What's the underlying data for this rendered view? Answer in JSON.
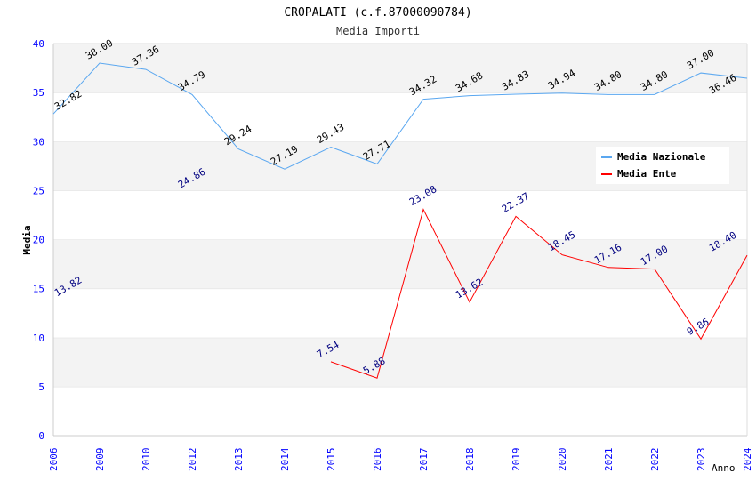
{
  "chart_data": {
    "type": "line",
    "title": "CROPALATI (c.f.87000090784)",
    "subtitle": "Media Importi",
    "xlabel": "Anno",
    "ylabel": "Media",
    "ylim": [
      0,
      40
    ],
    "yticks": [
      "0",
      "5",
      "10",
      "15",
      "20",
      "25",
      "30",
      "35",
      "40"
    ],
    "categories": [
      "2006",
      "2009",
      "2010",
      "2012",
      "2013",
      "2014",
      "2015",
      "2016",
      "2017",
      "2018",
      "2019",
      "2020",
      "2021",
      "2022",
      "2023",
      "2024"
    ],
    "legend_position": "top-right",
    "series": [
      {
        "name": "Media Nazionale",
        "color": "#5aa7f0",
        "label_color": "#000000",
        "values": [
          32.82,
          38.0,
          37.36,
          34.79,
          29.24,
          27.19,
          29.43,
          27.71,
          34.32,
          34.68,
          34.83,
          34.94,
          34.8,
          34.8,
          37.0,
          36.46
        ],
        "labels": [
          "32.82",
          "38.00",
          "37.36",
          "34.79",
          "29.24",
          "27.19",
          "29.43",
          "27.71",
          "34.32",
          "34.68",
          "34.83",
          "34.94",
          "34.80",
          "34.80",
          "37.00",
          "36.46"
        ]
      },
      {
        "name": "Media Ente",
        "color": "#ff0000",
        "label_color": "#000080",
        "values": [
          13.82,
          null,
          null,
          24.86,
          null,
          null,
          7.54,
          5.88,
          23.08,
          13.62,
          22.37,
          18.45,
          17.16,
          17.0,
          9.86,
          18.4
        ],
        "labels": [
          "13.82",
          "",
          "",
          "24.86",
          "",
          "",
          "7.54",
          "5.88",
          "23.08",
          "13.62",
          "22.37",
          "18.45",
          "17.16",
          "17.00",
          "9.86",
          "18.40"
        ]
      }
    ]
  }
}
